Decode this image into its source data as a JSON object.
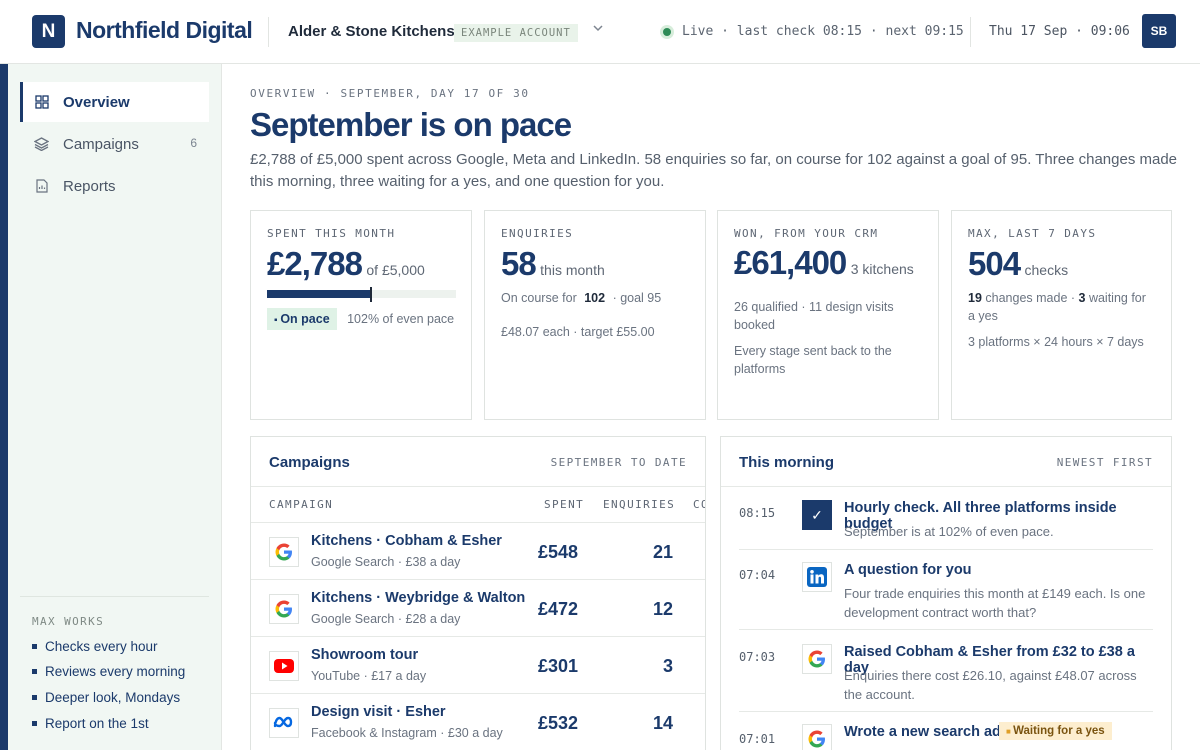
{
  "topbar": {
    "logo_letter": "N",
    "brand": "Northfield Digital",
    "account": "Alder & Stone Kitchens",
    "account_badge": "EXAMPLE ACCOUNT",
    "status": "Live · last check 08:15 · next 09:15",
    "datetime": "Thu 17 Sep · 09:06",
    "avatar": "SB"
  },
  "sidebar": {
    "items": [
      {
        "label": "Overview",
        "icon": "grid-icon",
        "active": true
      },
      {
        "label": "Campaigns",
        "icon": "layers-icon",
        "count": "6"
      },
      {
        "label": "Reports",
        "icon": "document-icon"
      }
    ],
    "works_title": "MAX WORKS",
    "works_items": [
      "Checks every hour",
      "Reviews every morning",
      "Deeper look, Mondays",
      "Report on the 1st"
    ]
  },
  "overview": {
    "eyebrow": "OVERVIEW · SEPTEMBER, DAY 17 OF 30",
    "headline": "September is on pace",
    "summary": "£2,788 of £5,000 spent across Google, Meta and LinkedIn. 58 enquiries so far, on course for 102 against a goal of 95. Three changes made this morning, three waiting for a yes, and one question for you."
  },
  "cards": {
    "spent": {
      "label": "SPENT THIS MONTH",
      "value": "£2,788",
      "suffix": "of £5,000",
      "progress_fraction": 0.5576,
      "pace_marker_fraction": 0.5467,
      "pill": "On pace",
      "pace_note": "102% of even pace"
    },
    "enquiries": {
      "label": "ENQUIRIES",
      "value": "58",
      "suffix": "this month",
      "course_prefix": "On course for",
      "course_value": "102",
      "goal": "· goal 95",
      "cost": "£48.07 each · target £55.00"
    },
    "won": {
      "label": "WON, FROM YOUR CRM",
      "value": "£61,400",
      "suffix": "3 kitchens",
      "detail": "26 qualified · 11 design visits booked",
      "note": "Every stage sent back to the platforms"
    },
    "max": {
      "label": "MAX, LAST 7 DAYS",
      "value": "504",
      "suffix": "checks",
      "changes_num": "19",
      "changes_text": "changes made ·",
      "waiting_num": "3",
      "waiting_text": "waiting for a yes",
      "note": "3 platforms × 24 hours × 7 days"
    }
  },
  "campaigns": {
    "title": "Campaigns",
    "meta": "SEPTEMBER TO DATE",
    "headers": {
      "campaign": "CAMPAIGN",
      "spent": "SPENT",
      "enquiries": "ENQUIRIES",
      "cost": "CO"
    },
    "rows": [
      {
        "name": "Kitchens · Cobham & Esher",
        "sub": "Google Search · £38 a day",
        "spent": "£548",
        "enquiries": "21",
        "platform": "google-icon"
      },
      {
        "name": "Kitchens · Weybridge & Walton",
        "sub": "Google Search · £28 a day",
        "spent": "£472",
        "enquiries": "12",
        "platform": "google-icon"
      },
      {
        "name": "Showroom tour",
        "sub": "YouTube · £17 a day",
        "spent": "£301",
        "enquiries": "3",
        "platform": "youtube-icon"
      },
      {
        "name": "Design visit · Esher",
        "sub": "Facebook & Instagram · £30 a day",
        "spent": "£532",
        "enquiries": "14",
        "platform": "meta-icon"
      }
    ]
  },
  "morning": {
    "title": "This morning",
    "meta": "NEWEST FIRST",
    "events": [
      {
        "time": "08:15",
        "icon": "check-icon",
        "title": "Hourly check. All three platforms inside budget",
        "body": "September is at 102% of even pace."
      },
      {
        "time": "07:04",
        "icon": "linkedin-icon",
        "title": "A question for you",
        "body": "Four trade enquiries this month at £149 each. Is one development contract worth that?"
      },
      {
        "time": "07:03",
        "icon": "google-icon",
        "title": "Raised Cobham & Esher from £32 to £38 a day",
        "body": "Enquiries there cost £26.10, against £48.07 across the account."
      },
      {
        "time": "07:01",
        "icon": "google-icon",
        "title": "Wrote a new search ad",
        "badge": "Waiting for a yes"
      }
    ]
  },
  "colors": {
    "brand": "#1b3a6b",
    "live": "#2e8b57",
    "sidebar_bg": "#f1f7f3",
    "waiting_bg": "#fdeecf"
  }
}
